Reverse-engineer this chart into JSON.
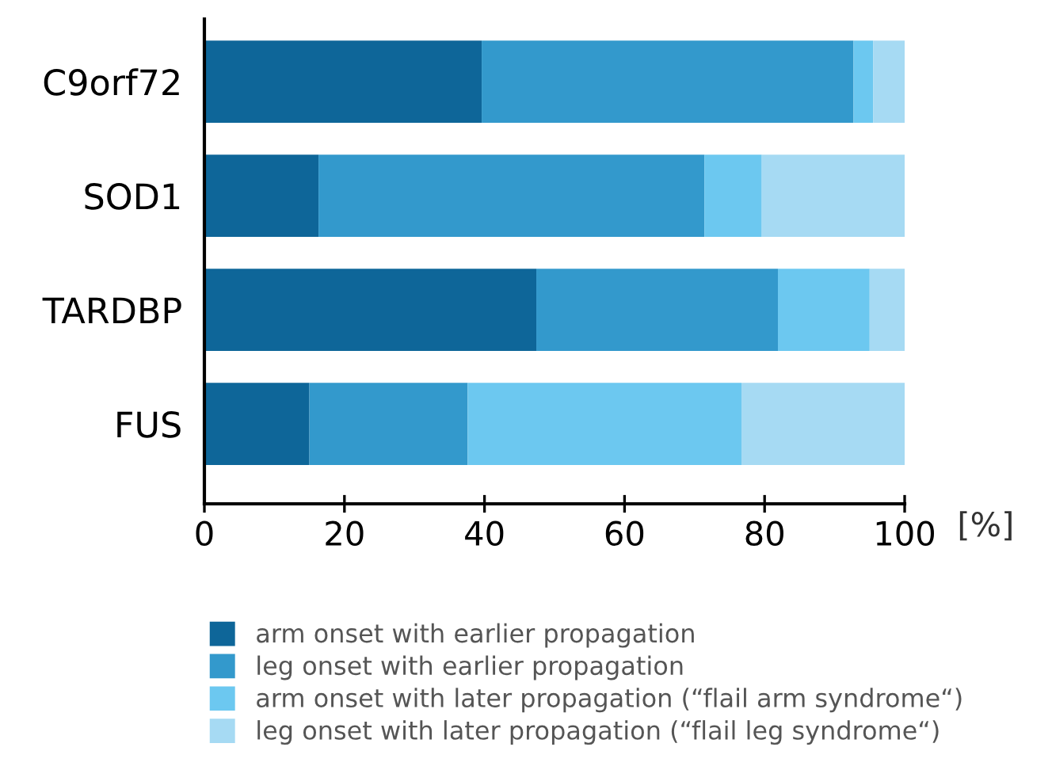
{
  "chart_data": {
    "type": "bar",
    "orientation": "horizontal",
    "stacked": true,
    "xlabel": "[%]",
    "categories": [
      "C9orf72",
      "SOD1",
      "TARDBP",
      "FUS"
    ],
    "series": [
      {
        "name": "arm onset with earlier propagation",
        "color": "#0e6699",
        "values": [
          39.6,
          16.3,
          47.4,
          15.0
        ]
      },
      {
        "name": "leg onset with earlier propagation",
        "color": "#3399cc",
        "values": [
          53.1,
          55.1,
          34.5,
          22.6
        ]
      },
      {
        "name": "arm onset with later propagation (“flail arm syndrome“)",
        "color": "#6cc8f0",
        "values": [
          2.8,
          8.2,
          13.1,
          39.1
        ]
      },
      {
        "name": "leg onset with later propagation (“flail leg syndrome“)",
        "color": "#a6daf3",
        "values": [
          4.5,
          20.4,
          5.0,
          23.3
        ]
      }
    ],
    "xlim": [
      0,
      100
    ],
    "xticks": [
      0,
      20,
      40,
      60,
      80,
      100
    ],
    "grid": false,
    "legend": "bottom"
  }
}
